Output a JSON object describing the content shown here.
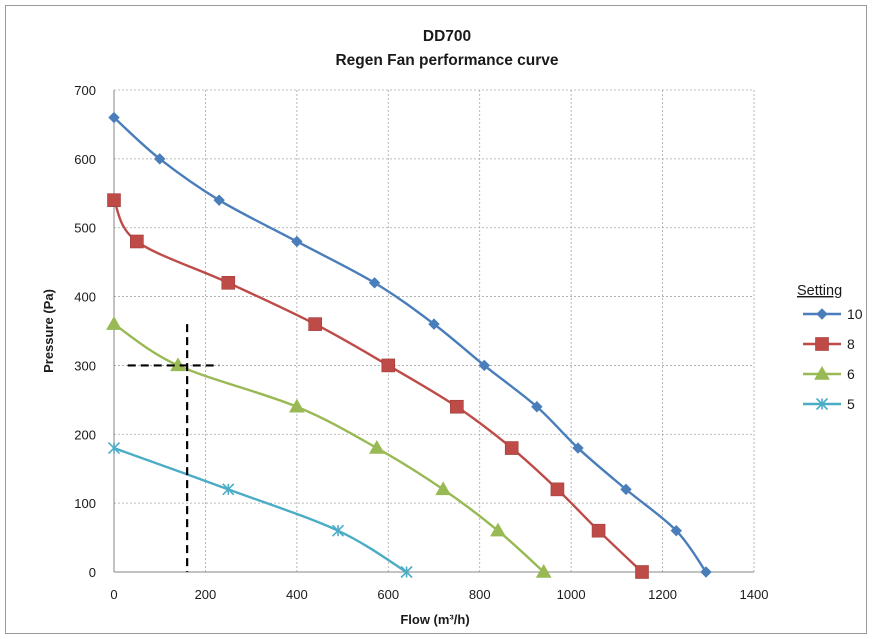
{
  "chart_data": {
    "type": "line",
    "title": "DD700",
    "subtitle": "Regen Fan performance curve",
    "xlabel": "Flow (m³/h)",
    "ylabel": "Pressure (Pa)",
    "xlim": [
      0,
      1400
    ],
    "ylim": [
      0,
      700
    ],
    "x_ticks": [
      "0",
      "200",
      "400",
      "600",
      "800",
      "1000",
      "1200",
      "1400"
    ],
    "y_ticks": [
      "0",
      "100",
      "200",
      "300",
      "400",
      "500",
      "600",
      "700"
    ],
    "grid": "dashed",
    "legend_title": "Setting",
    "legend_position": "right",
    "series": [
      {
        "name": "10",
        "color": "#4a7ebb",
        "marker": "diamond",
        "points": [
          [
            0,
            660
          ],
          [
            100,
            600
          ],
          [
            230,
            540
          ],
          [
            400,
            480
          ],
          [
            570,
            420
          ],
          [
            700,
            360
          ],
          [
            810,
            300
          ],
          [
            925,
            240
          ],
          [
            1015,
            180
          ],
          [
            1120,
            120
          ],
          [
            1230,
            60
          ],
          [
            1295,
            0
          ]
        ]
      },
      {
        "name": "8",
        "color": "#be4b48",
        "marker": "square",
        "points": [
          [
            0,
            540
          ],
          [
            50,
            480
          ],
          [
            250,
            420
          ],
          [
            440,
            360
          ],
          [
            600,
            300
          ],
          [
            750,
            240
          ],
          [
            870,
            180
          ],
          [
            970,
            120
          ],
          [
            1060,
            60
          ],
          [
            1155,
            0
          ]
        ]
      },
      {
        "name": "6",
        "color": "#98b954",
        "marker": "triangle",
        "points": [
          [
            0,
            360
          ],
          [
            140,
            300
          ],
          [
            400,
            240
          ],
          [
            575,
            180
          ],
          [
            720,
            120
          ],
          [
            840,
            60
          ],
          [
            940,
            0
          ]
        ]
      },
      {
        "name": "5",
        "color": "#4bacc6",
        "marker": "star",
        "points": [
          [
            0,
            180
          ],
          [
            250,
            120
          ],
          [
            490,
            60
          ],
          [
            640,
            0
          ]
        ]
      }
    ],
    "annotations": {
      "style": "dashed black reference lines",
      "horizontal_line": {
        "y": 300,
        "x_from": 30,
        "x_to": 230
      },
      "vertical_line": {
        "x": 160,
        "y_from": 0,
        "y_to": 360
      }
    }
  }
}
